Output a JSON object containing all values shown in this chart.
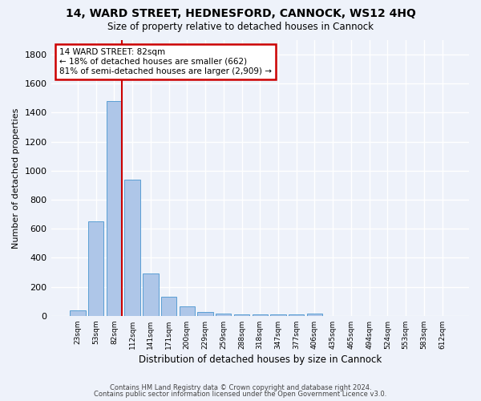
{
  "title": "14, WARD STREET, HEDNESFORD, CANNOCK, WS12 4HQ",
  "subtitle": "Size of property relative to detached houses in Cannock",
  "xlabel": "Distribution of detached houses by size in Cannock",
  "ylabel": "Number of detached properties",
  "categories": [
    "23sqm",
    "53sqm",
    "82sqm",
    "112sqm",
    "141sqm",
    "171sqm",
    "200sqm",
    "229sqm",
    "259sqm",
    "288sqm",
    "318sqm",
    "347sqm",
    "377sqm",
    "406sqm",
    "435sqm",
    "465sqm",
    "494sqm",
    "524sqm",
    "553sqm",
    "583sqm",
    "612sqm"
  ],
  "values": [
    40,
    650,
    1480,
    940,
    290,
    130,
    65,
    25,
    15,
    10,
    10,
    10,
    10,
    15,
    0,
    0,
    0,
    0,
    0,
    0,
    0
  ],
  "bar_color": "#aec6e8",
  "bar_edge_color": "#5a9fd4",
  "highlight_index": 2,
  "highlight_line_color": "#cc0000",
  "annotation_line1": "14 WARD STREET: 82sqm",
  "annotation_line2": "← 18% of detached houses are smaller (662)",
  "annotation_line3": "81% of semi-detached houses are larger (2,909) →",
  "annotation_box_color": "#cc0000",
  "ylim": [
    0,
    1900
  ],
  "yticks": [
    0,
    200,
    400,
    600,
    800,
    1000,
    1200,
    1400,
    1600,
    1800
  ],
  "background_color": "#eef2fa",
  "grid_color": "#ffffff",
  "footer_line1": "Contains HM Land Registry data © Crown copyright and database right 2024.",
  "footer_line2": "Contains public sector information licensed under the Open Government Licence v3.0."
}
